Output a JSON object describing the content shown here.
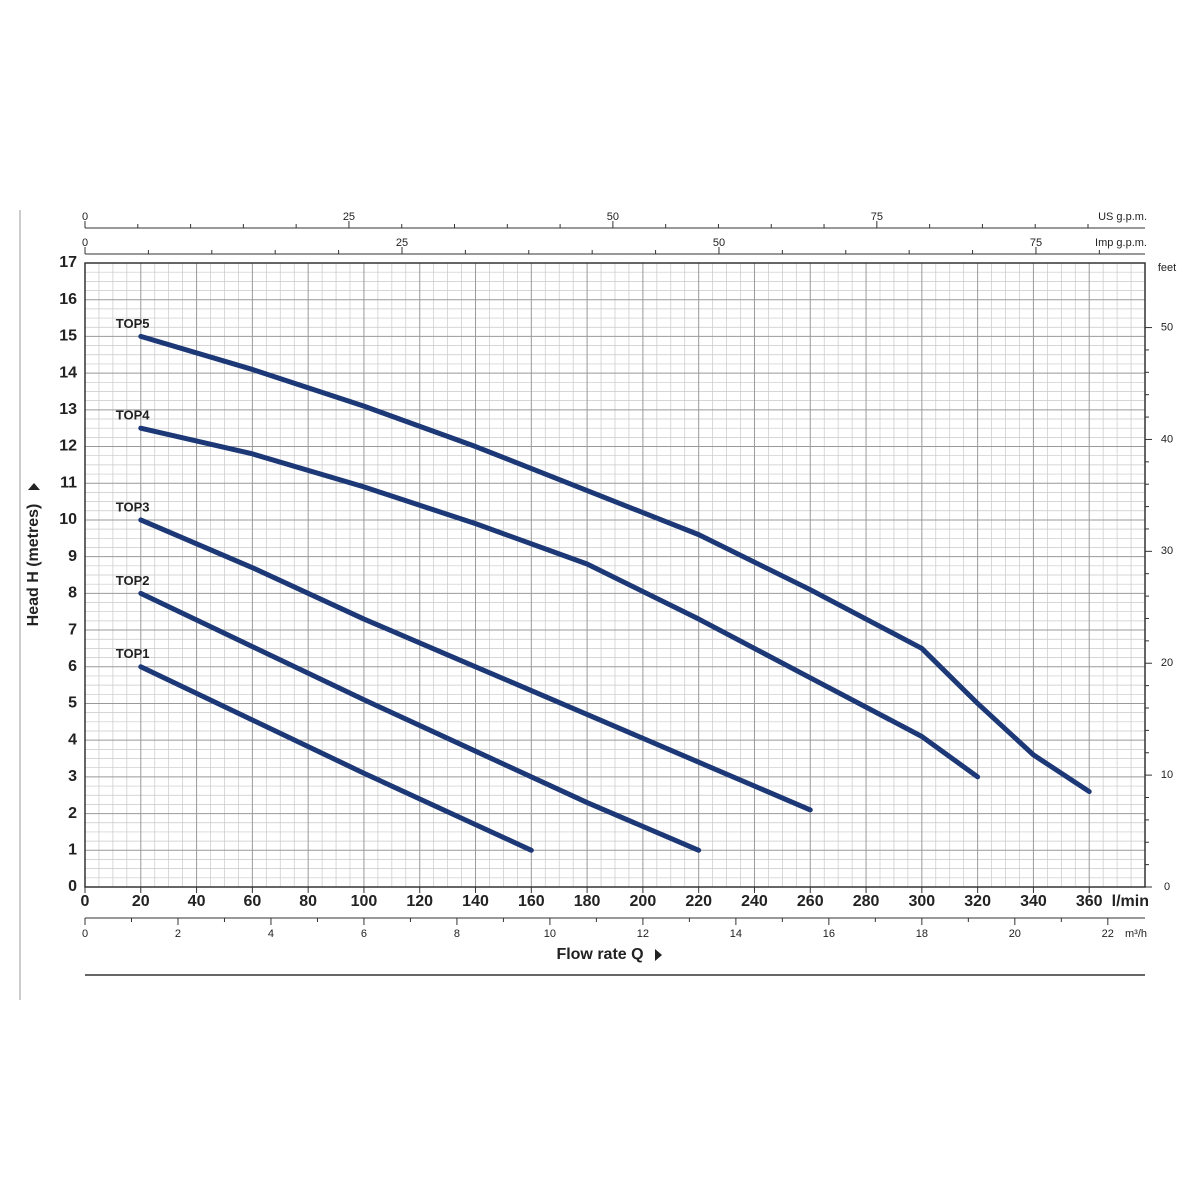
{
  "chart_data": {
    "type": "line",
    "x_label": "Flow rate Q",
    "y_label": "Head H  (metres)",
    "x_unit": "l/min",
    "xlim": [
      0,
      380
    ],
    "xticks": [
      0,
      20,
      40,
      60,
      80,
      100,
      120,
      140,
      160,
      180,
      200,
      220,
      240,
      260,
      280,
      300,
      320,
      340,
      360
    ],
    "ylim": [
      0,
      17
    ],
    "yticks": [
      0,
      1,
      2,
      3,
      4,
      5,
      6,
      7,
      8,
      9,
      10,
      11,
      12,
      13,
      14,
      15,
      16,
      17
    ],
    "y2_label": "feet",
    "y2lim": [
      0,
      55.77
    ],
    "y2ticks": [
      0,
      10,
      20,
      30,
      40,
      50
    ],
    "grid": true,
    "x_axes": [
      {
        "position": "top",
        "label": "US g.p.m.",
        "lim": [
          0,
          100.4
        ],
        "ticks": [
          0,
          25,
          50,
          75
        ]
      },
      {
        "position": "top",
        "label": "Imp g.p.m.",
        "lim": [
          0,
          83.6
        ],
        "ticks": [
          0,
          25,
          50,
          75
        ]
      },
      {
        "position": "bottom",
        "label": "m³/h",
        "lim": [
          0,
          22.8
        ],
        "ticks": [
          0,
          2,
          4,
          6,
          8,
          10,
          12,
          14,
          16,
          18,
          20,
          22
        ]
      }
    ],
    "series": [
      {
        "name": "TOP1",
        "color": "#1c3876",
        "x": [
          20,
          60,
          100,
          140,
          160
        ],
        "values": [
          6,
          4.55,
          3.1,
          1.7,
          1.0
        ]
      },
      {
        "name": "TOP2",
        "color": "#1c3876",
        "x": [
          20,
          60,
          100,
          140,
          180,
          220
        ],
        "values": [
          8,
          6.55,
          5.1,
          3.7,
          2.3,
          1.0
        ]
      },
      {
        "name": "TOP3",
        "color": "#1c3876",
        "x": [
          20,
          60,
          100,
          140,
          180,
          220,
          260
        ],
        "values": [
          10,
          8.7,
          7.3,
          6.0,
          4.7,
          3.4,
          2.1
        ]
      },
      {
        "name": "TOP4",
        "color": "#1c3876",
        "x": [
          20,
          60,
          100,
          140,
          180,
          220,
          260,
          300,
          320
        ],
        "values": [
          12.5,
          11.8,
          10.9,
          9.9,
          8.8,
          7.3,
          5.7,
          4.1,
          3.0
        ]
      },
      {
        "name": "TOP5",
        "color": "#1c3876",
        "x": [
          20,
          60,
          100,
          140,
          180,
          220,
          260,
          300,
          320,
          340,
          360
        ],
        "values": [
          15,
          14.1,
          13.1,
          12.0,
          10.8,
          9.6,
          8.1,
          6.5,
          5.0,
          3.6,
          2.6
        ]
      }
    ]
  }
}
